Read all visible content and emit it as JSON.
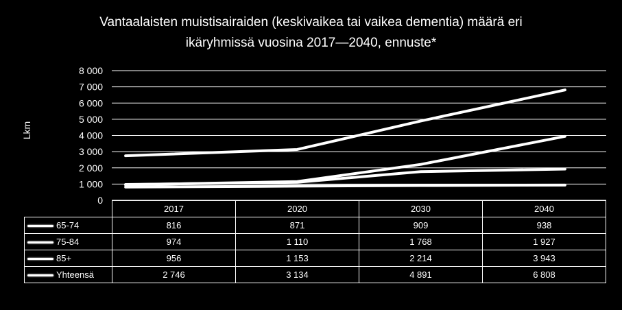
{
  "chart_data": {
    "type": "line",
    "title_line1": "Vantaalaisten muistisairaiden (keskivaikea tai vaikea dementia) määrä eri",
    "title_line2": "ikäryhmissä vuosina 2017—2040, ennuste*",
    "xlabel": "",
    "ylabel": "Lkm",
    "ylim": [
      0,
      8000
    ],
    "yticks": [
      0,
      1000,
      2000,
      3000,
      4000,
      5000,
      6000,
      7000,
      8000
    ],
    "ytick_labels": [
      "0",
      "1 000",
      "2 000",
      "3 000",
      "4 000",
      "5 000",
      "6 000",
      "7 000",
      "8 000"
    ],
    "grid": true,
    "legend": "data-table",
    "color": "#ffffff",
    "categories": [
      "2017",
      "2020",
      "2030",
      "2040"
    ],
    "series": [
      {
        "name": "65-74",
        "values": [
          816,
          871,
          909,
          938
        ],
        "labels": [
          "816",
          "871",
          "909",
          "938"
        ]
      },
      {
        "name": "75-84",
        "values": [
          974,
          1110,
          1768,
          1927
        ],
        "labels": [
          "974",
          "1 110",
          "1 768",
          "1 927"
        ]
      },
      {
        "name": "85+",
        "values": [
          956,
          1153,
          2214,
          3943
        ],
        "labels": [
          "956",
          "1 153",
          "2 214",
          "3 943"
        ]
      },
      {
        "name": "Yhteensä",
        "values": [
          2746,
          3134,
          4891,
          6808
        ],
        "labels": [
          "2 746",
          "3 134",
          "4 891",
          "6 808"
        ]
      }
    ]
  }
}
